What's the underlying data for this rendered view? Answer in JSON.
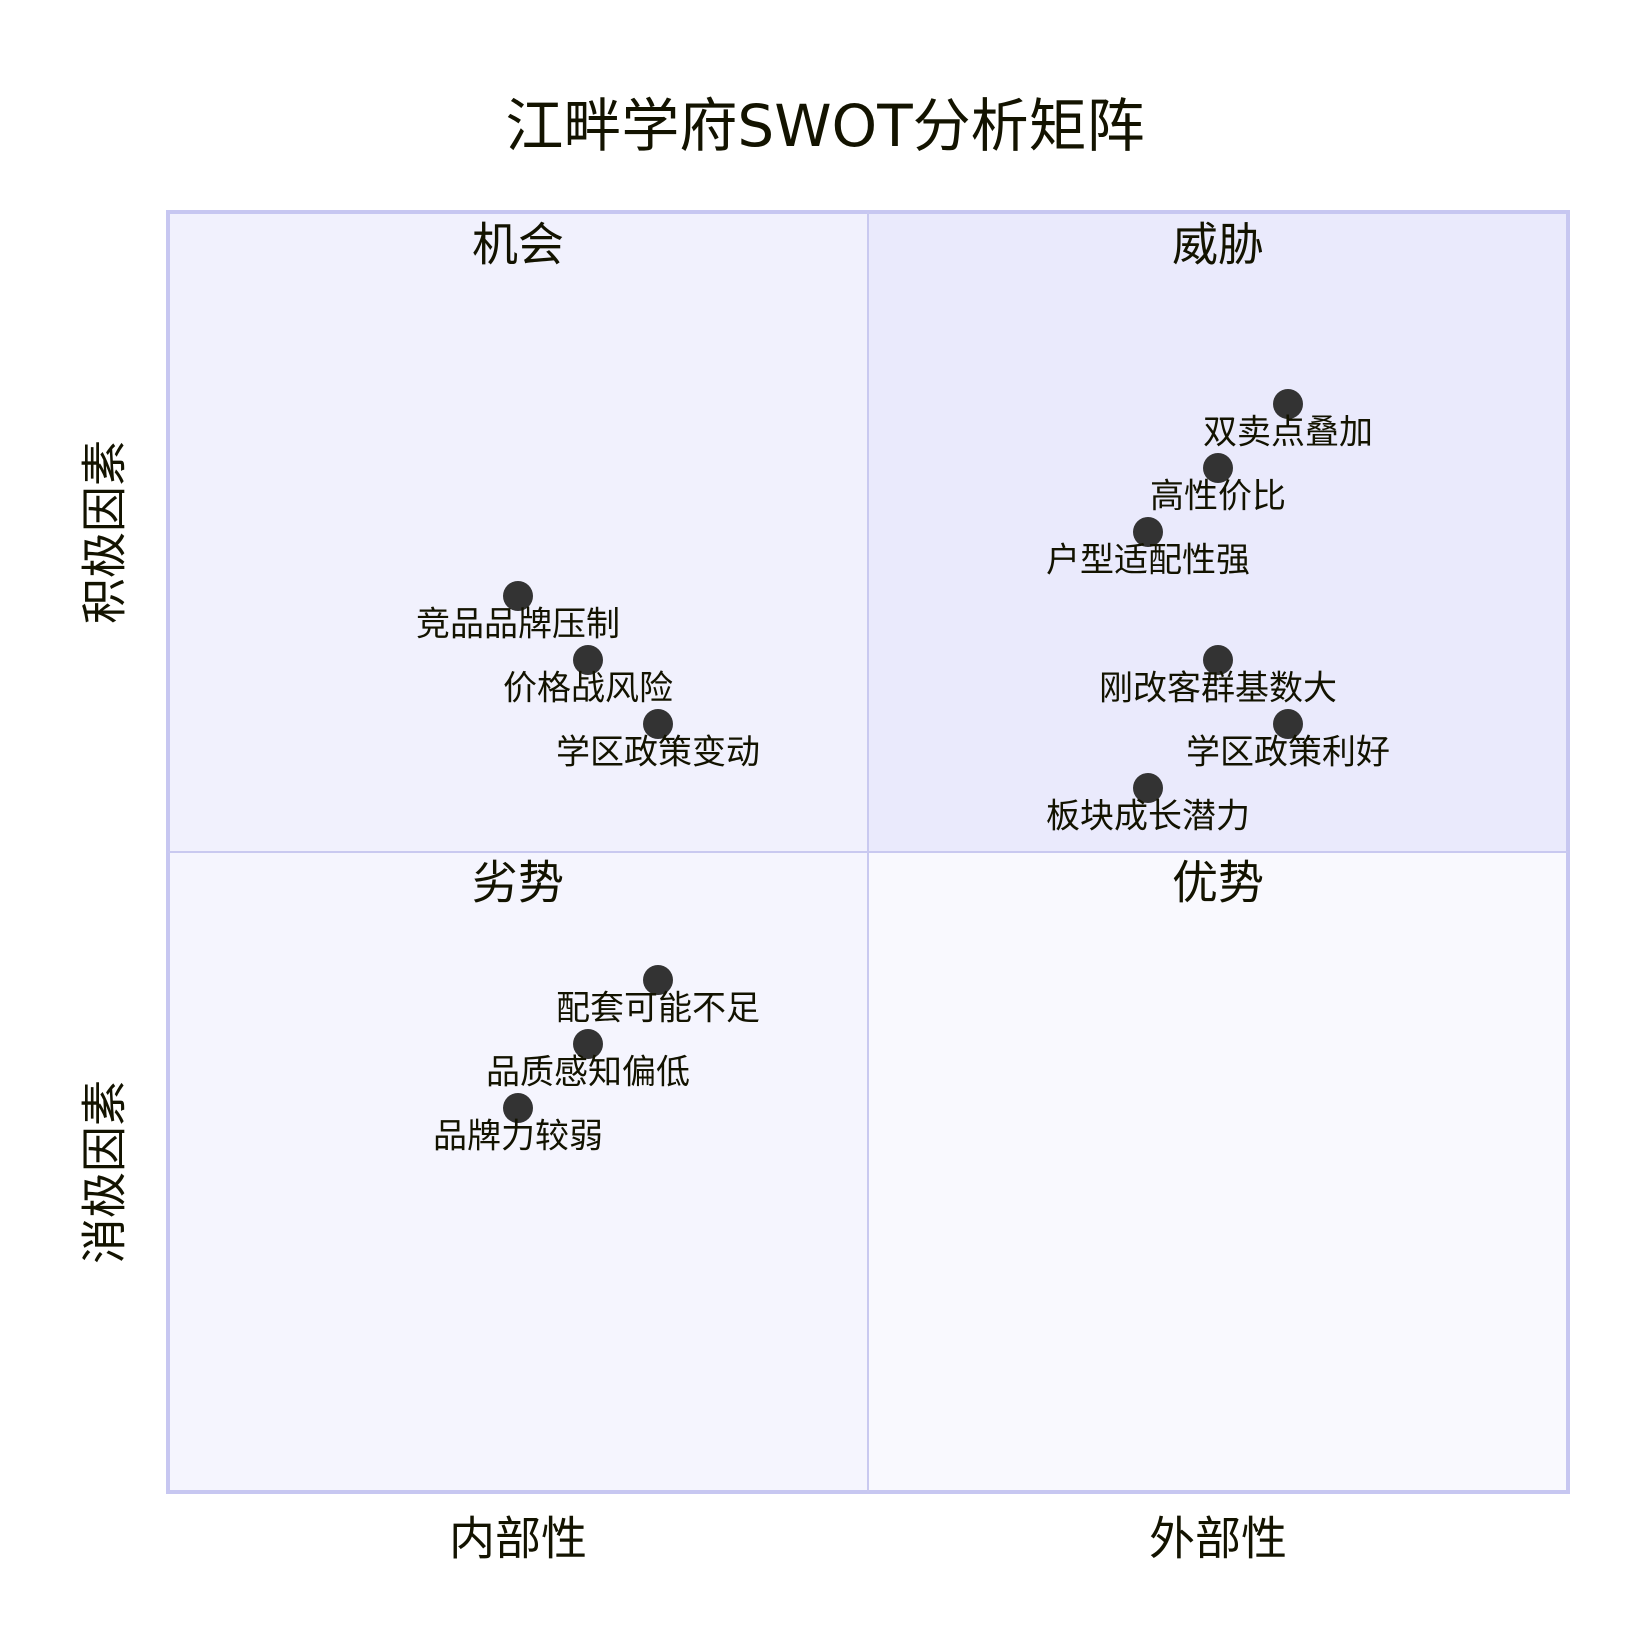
{
  "chart_data": {
    "type": "scatter",
    "title": "江畔学府SWOT分析矩阵",
    "xlabel_left": "内部性",
    "xlabel_right": "外部性",
    "ylabel_bottom": "消极因素",
    "ylabel_top": "积极因素",
    "quadrant_labels": {
      "top_left": "机会",
      "top_right": "威胁",
      "bottom_left": "劣势",
      "bottom_right": "优势"
    },
    "xlim": [
      0,
      1
    ],
    "ylim": [
      0,
      1
    ],
    "points": [
      {
        "label": "双卖点叠加",
        "x": 0.8,
        "y": 0.85
      },
      {
        "label": "高性价比",
        "x": 0.75,
        "y": 0.8
      },
      {
        "label": "户型适配性强",
        "x": 0.7,
        "y": 0.75
      },
      {
        "label": "刚改客群基数大",
        "x": 0.75,
        "y": 0.65
      },
      {
        "label": "学区政策利好",
        "x": 0.8,
        "y": 0.6
      },
      {
        "label": "板块成长潜力",
        "x": 0.7,
        "y": 0.55
      },
      {
        "label": "竞品品牌压制",
        "x": 0.25,
        "y": 0.7
      },
      {
        "label": "价格战风险",
        "x": 0.3,
        "y": 0.65
      },
      {
        "label": "学区政策变动",
        "x": 0.35,
        "y": 0.6
      },
      {
        "label": "配套可能不足",
        "x": 0.35,
        "y": 0.4
      },
      {
        "label": "品质感知偏低",
        "x": 0.3,
        "y": 0.35
      },
      {
        "label": "品牌力较弱",
        "x": 0.25,
        "y": 0.3
      }
    ]
  },
  "colors": {
    "quadrant_top_left": "#f1f1fd",
    "quadrant_top_right": "#eaeafc",
    "quadrant_bottom_left": "#f5f5fe",
    "quadrant_bottom_right": "#f9f9fe",
    "border": "#c7c7f1",
    "divider": "#c9c9f0",
    "point": "#333333",
    "text": "#131300"
  }
}
